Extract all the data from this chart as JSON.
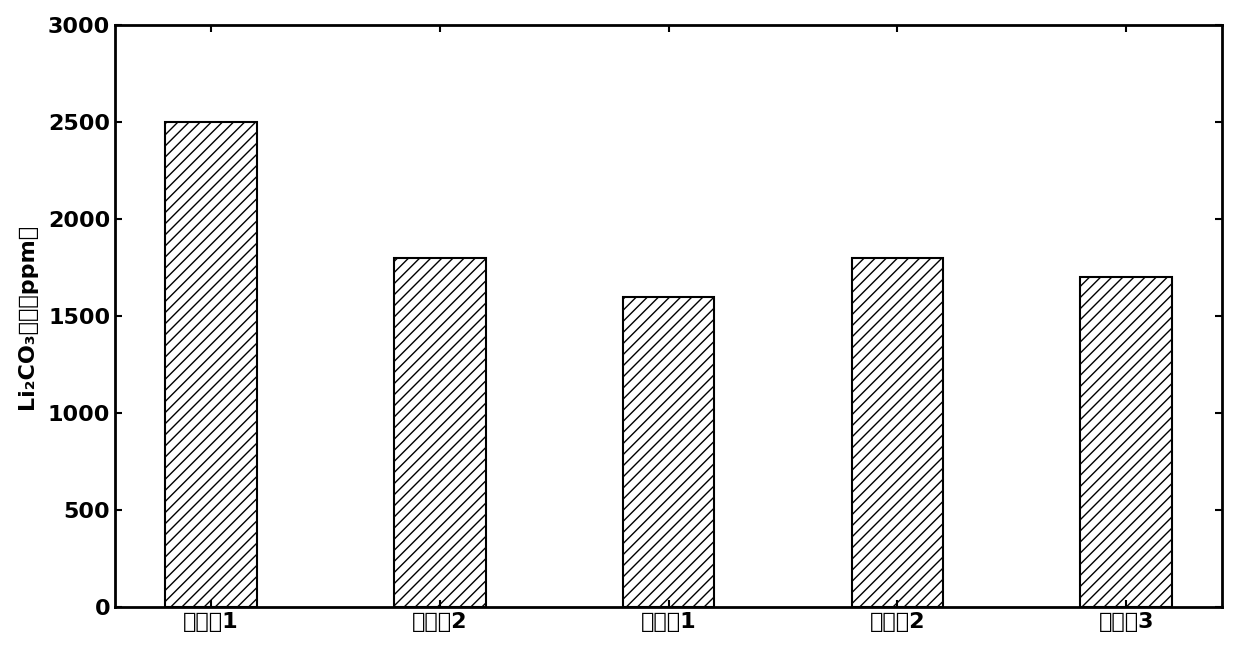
{
  "categories": [
    "对比例1",
    "对比例2",
    "实施例1",
    "实施例2",
    "实施例3"
  ],
  "values": [
    2500,
    1800,
    1600,
    1800,
    1700
  ],
  "ylabel": "Li₂CO₃含量（ppm）",
  "ylim": [
    0,
    3000
  ],
  "yticks": [
    0,
    500,
    1000,
    1500,
    2000,
    2500,
    3000
  ],
  "bar_color": "#ffffff",
  "bar_edgecolor": "#000000",
  "hatch": "///",
  "background_color": "#ffffff",
  "label_fontsize": 16,
  "tick_fontsize": 16,
  "bar_width": 0.4,
  "spine_linewidth": 2.0,
  "bar_linewidth": 1.5
}
